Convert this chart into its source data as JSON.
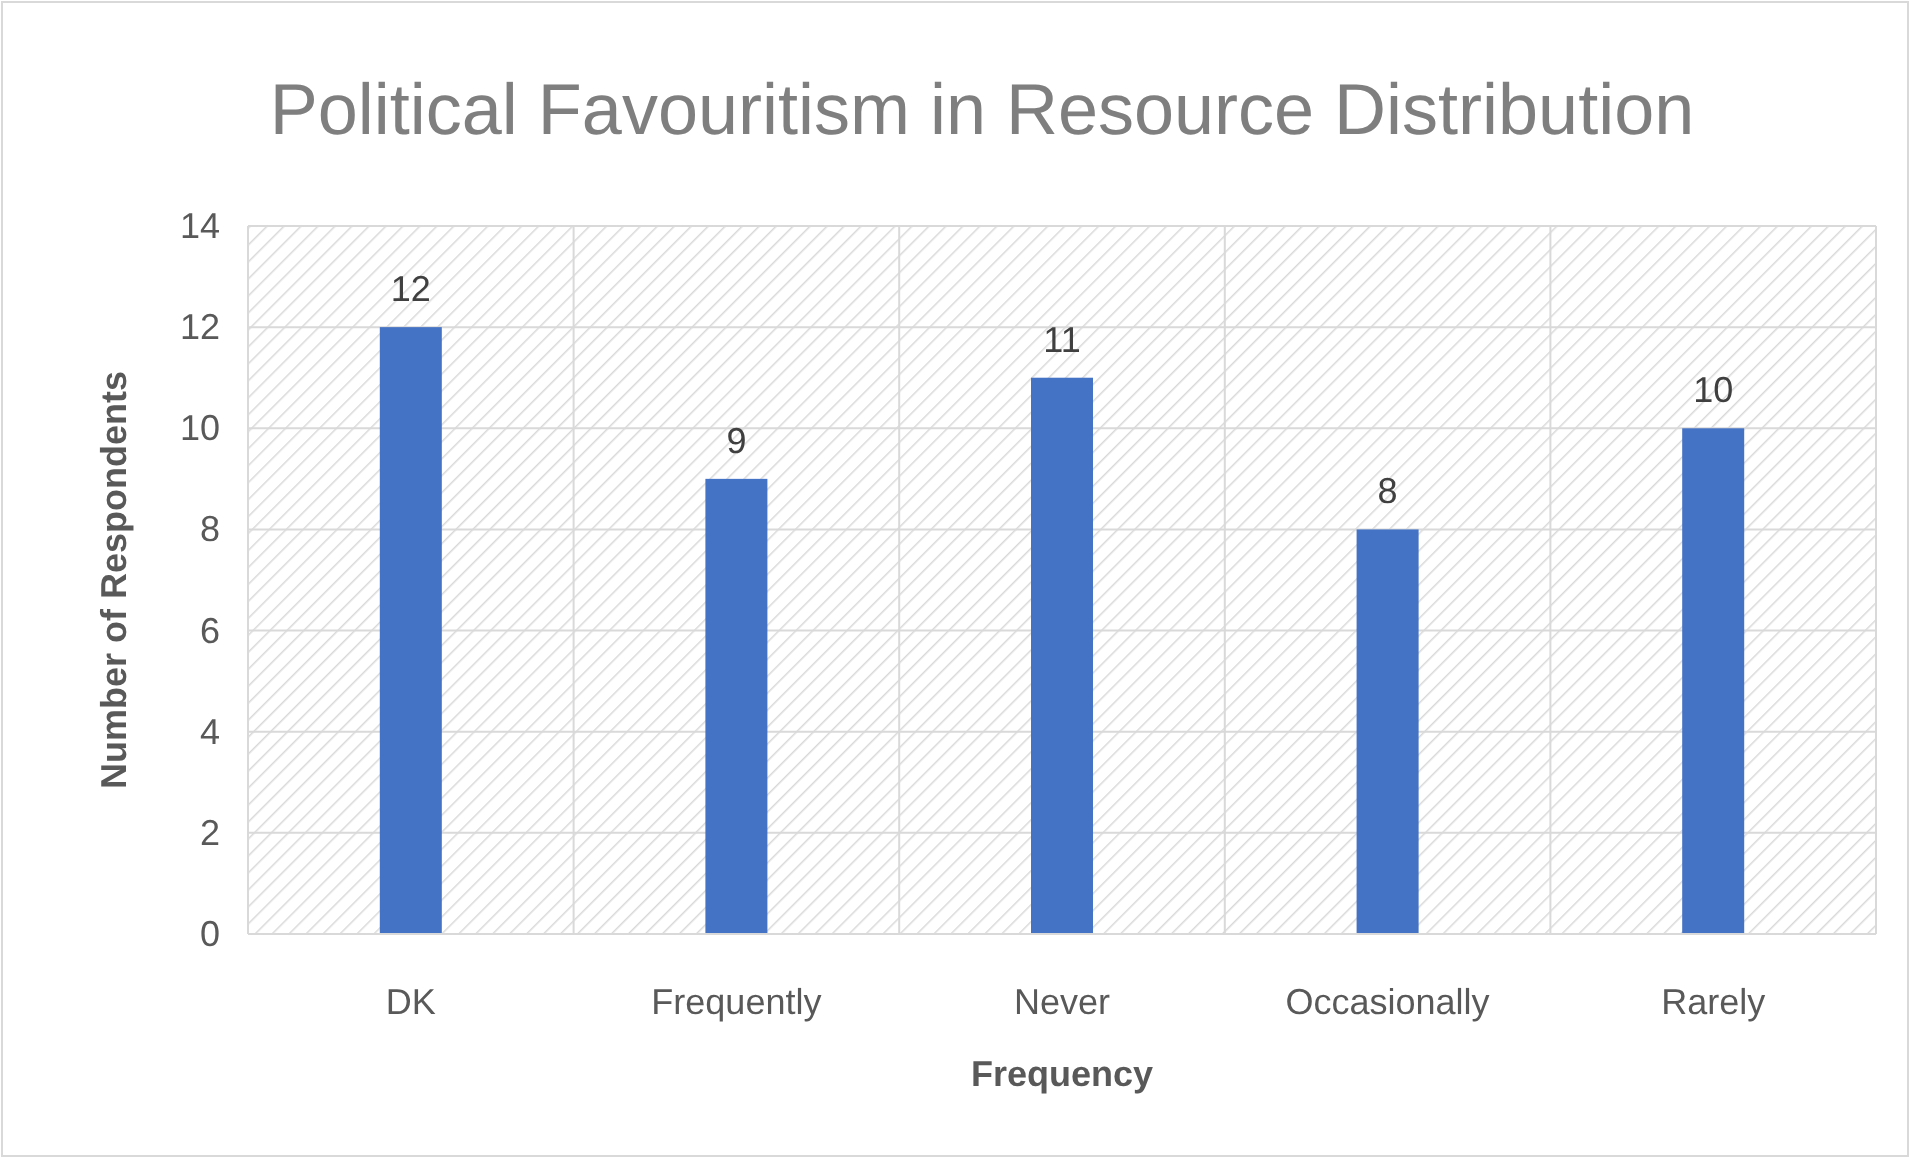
{
  "chart_data": {
    "type": "bar",
    "title": "Political Favouritism in Resource Distribution",
    "xlabel": "Frequency",
    "ylabel": "Number of Respondents",
    "categories": [
      "DK",
      "Frequently",
      "Never",
      "Occasionally",
      "Rarely"
    ],
    "values": [
      12,
      9,
      11,
      8,
      10
    ],
    "color": "#4472c4",
    "ylim": [
      0,
      14
    ],
    "yticks": [
      0,
      2,
      4,
      6,
      8,
      10,
      12,
      14
    ],
    "grid": true,
    "data_labels": true
  }
}
